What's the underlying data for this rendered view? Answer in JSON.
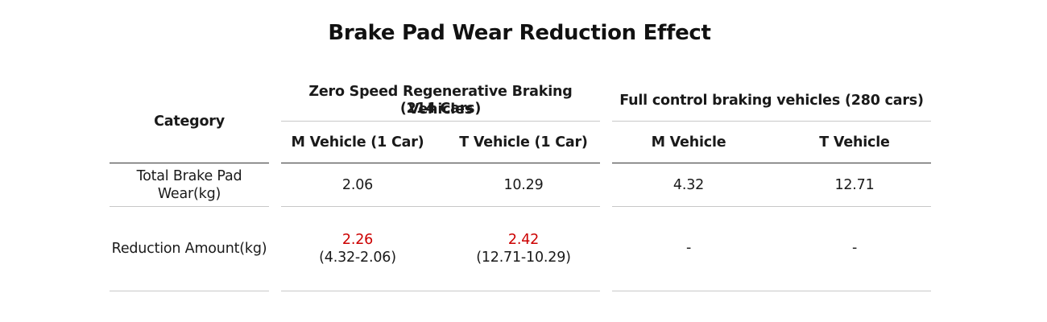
{
  "title": "Brake Pad Wear Reduction Effect",
  "table": {
    "category_header": "Category",
    "group1": {
      "line1": "Zero Speed Regenerative Braking Vehicles",
      "line2": "(214 Cars)",
      "col_m": "M Vehicle (1 Car)",
      "col_t": "T Vehicle (1 Car)"
    },
    "group2": {
      "label": "Full control braking vehicles (280 cars)",
      "col_m": "M Vehicle",
      "col_t": "T Vehicle"
    },
    "rows": [
      {
        "label_line1": "Total Brake Pad",
        "label_line2": "Wear(kg)",
        "g1_m": "2.06",
        "g1_t": "10.29",
        "g2_m": "4.32",
        "g2_t": "12.71"
      },
      {
        "label": "Reduction Amount(kg)",
        "g1_m_value": "2.26",
        "g1_m_calc": "(4.32-2.06)",
        "g1_t_value": "2.42",
        "g1_t_calc": "(12.71-10.29)",
        "g2_m": "-",
        "g2_t": "-"
      }
    ]
  },
  "colors": {
    "highlight": "#cc0000",
    "text": "#1a1a1a"
  }
}
